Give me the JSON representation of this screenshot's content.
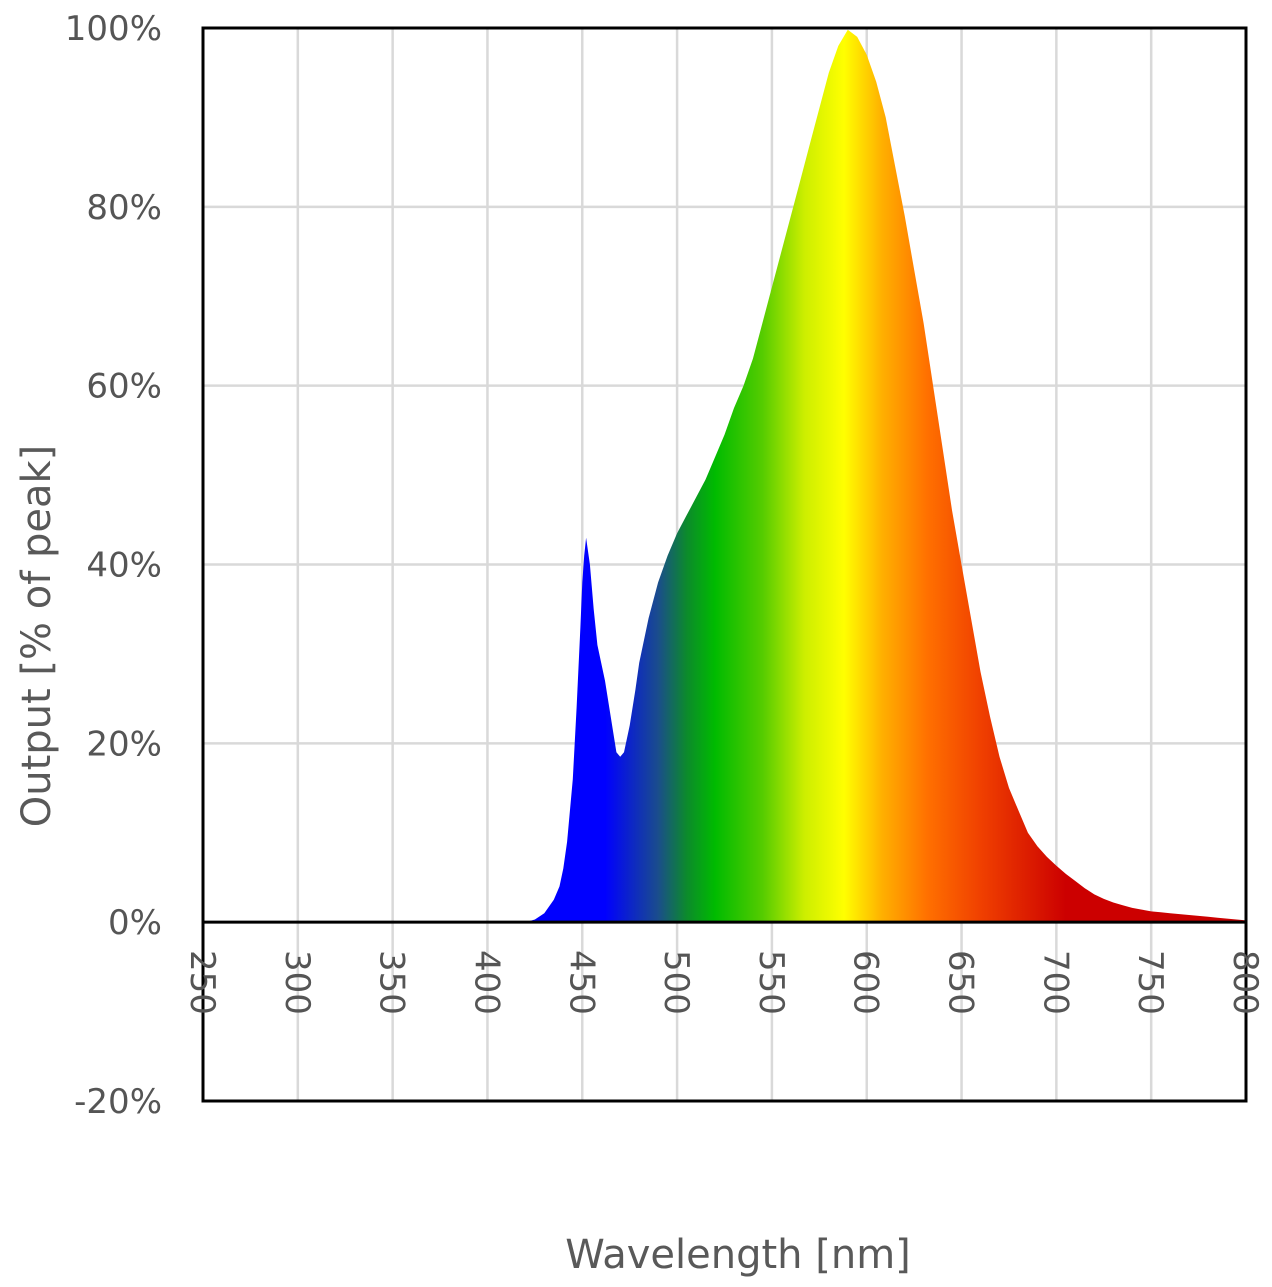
{
  "chart_data": {
    "type": "area",
    "title": "",
    "xlabel": "Wavelength [nm]",
    "ylabel": "Output [% of peak]",
    "xlim": [
      250,
      800
    ],
    "ylim": [
      -20,
      100
    ],
    "grid": true,
    "legend": "none",
    "x_ticks": [
      250,
      300,
      350,
      400,
      450,
      500,
      550,
      600,
      650,
      700,
      750,
      800
    ],
    "x_tick_labels": [
      "250",
      "300",
      "350",
      "400",
      "450",
      "500",
      "550",
      "600",
      "650",
      "700",
      "750",
      "800"
    ],
    "y_ticks": [
      -20,
      0,
      20,
      40,
      60,
      80,
      100
    ],
    "y_tick_labels": [
      "-20%",
      "0%",
      "20%",
      "40%",
      "60%",
      "80%",
      "100%"
    ],
    "fill": "visible-spectrum gradient",
    "series": [
      {
        "x": [
          420,
          425,
          430,
          435,
          438,
          440,
          442,
          445,
          447,
          449,
          450,
          451,
          452,
          454,
          456,
          458,
          460,
          462,
          465,
          468,
          470,
          472,
          475,
          478,
          480,
          485,
          490,
          495,
          500,
          505,
          510,
          515,
          520,
          525,
          530,
          535,
          540,
          545,
          550,
          555,
          560,
          565,
          570,
          575,
          580,
          585,
          590,
          595,
          600,
          605,
          610,
          615,
          620,
          625,
          630,
          635,
          640,
          645,
          650,
          655,
          660,
          665,
          670,
          675,
          680,
          685,
          690,
          695,
          700,
          705,
          710,
          715,
          720,
          725,
          730,
          735,
          740,
          745,
          750,
          755,
          760,
          765,
          770,
          775,
          780,
          785,
          790,
          795,
          800
        ],
        "y": [
          0,
          0.3,
          1,
          2.5,
          4,
          6,
          9,
          16,
          24,
          33,
          38,
          41,
          43,
          40,
          35,
          31,
          29,
          27,
          23,
          19,
          18.5,
          19,
          22,
          26,
          29,
          34,
          38,
          41,
          43.5,
          45.5,
          47.5,
          49.5,
          52,
          54.5,
          57.5,
          60,
          63,
          67,
          71,
          75,
          79,
          83,
          87,
          91,
          95,
          98,
          99.8,
          99,
          97,
          94,
          90,
          84.5,
          79,
          73,
          67,
          60,
          53,
          46,
          40,
          34,
          28,
          23,
          18.5,
          15,
          12.5,
          10,
          8.5,
          7.3,
          6.3,
          5.4,
          4.6,
          3.8,
          3.1,
          2.6,
          2.2,
          1.9,
          1.6,
          1.4,
          1.2,
          1.1,
          1.0,
          0.9,
          0.8,
          0.7,
          0.6,
          0.5,
          0.4,
          0.3,
          0.2
        ]
      }
    ]
  }
}
